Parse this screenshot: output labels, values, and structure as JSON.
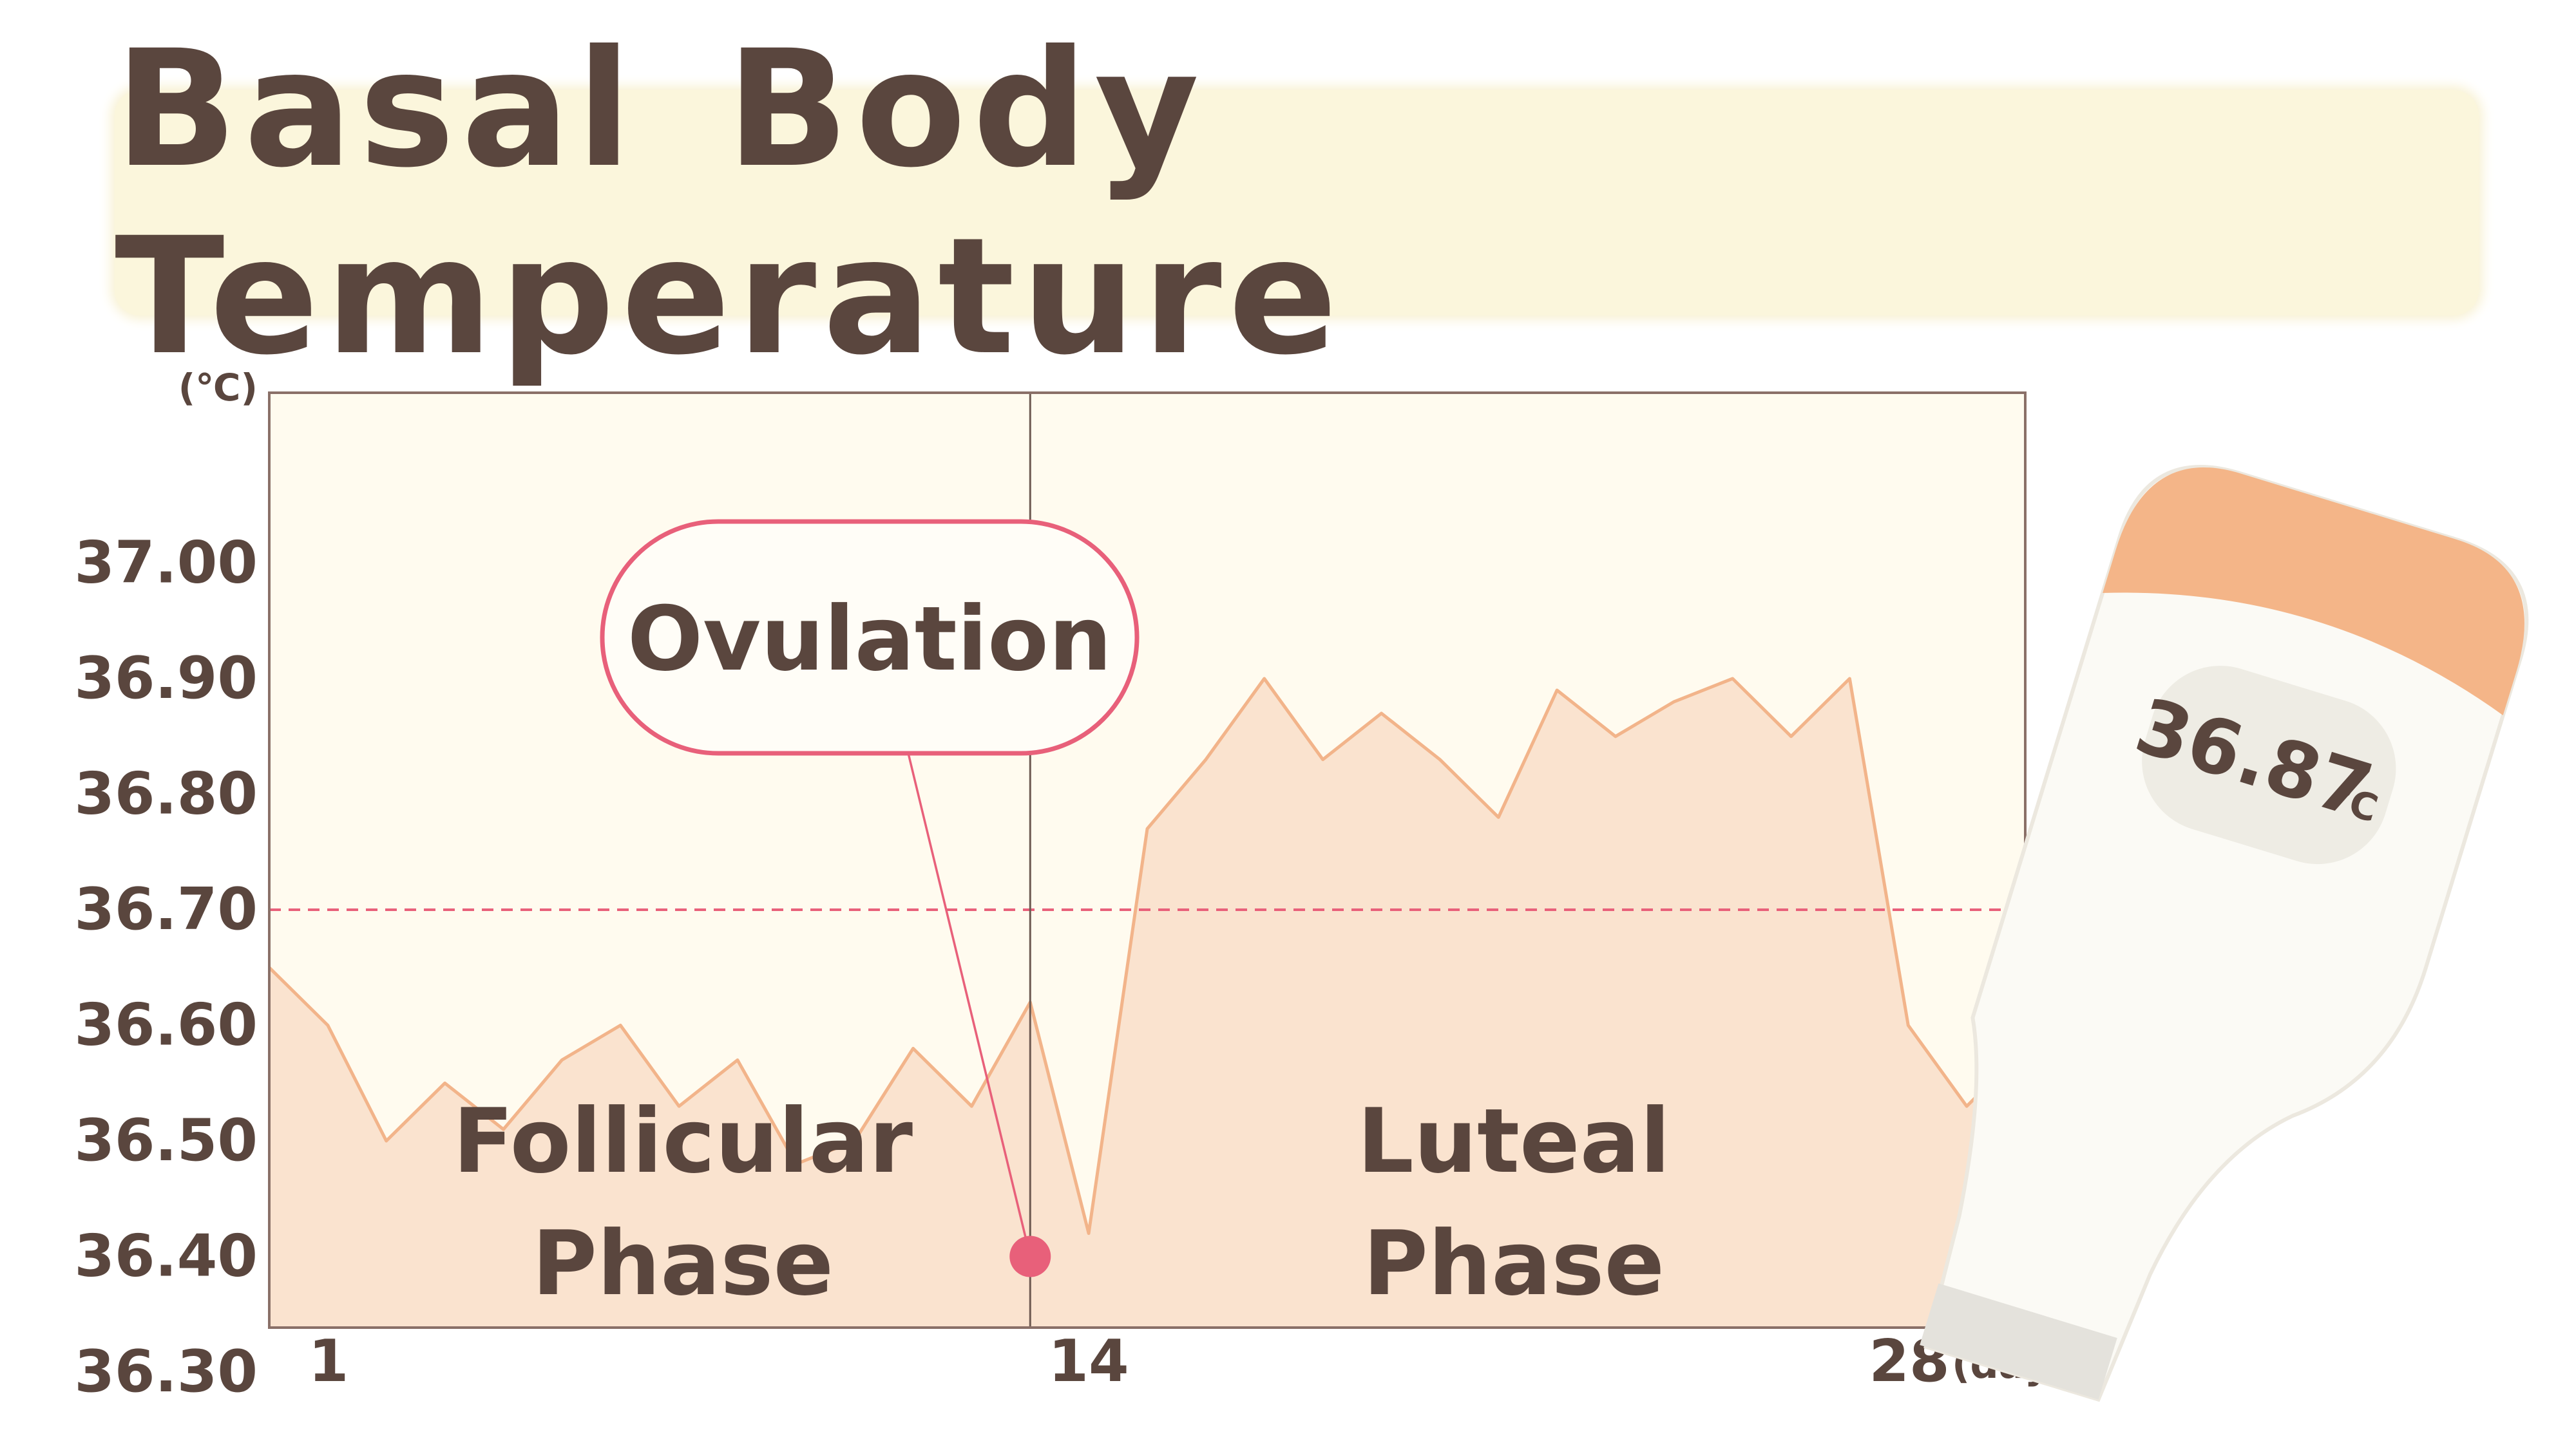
{
  "title": "Basal Body Temperature",
  "thermometer": {
    "reading": "36.87",
    "unit": "℃"
  },
  "colors": {
    "text": "#5a463e",
    "accent": "#e8607a",
    "fill": "#fae3cf",
    "line": "#f2b48a",
    "plot_bg": "#fffbef",
    "banner": "#fbf6dc"
  },
  "chart_data": {
    "type": "area",
    "title": "Basal Body Temperature",
    "y_unit": "(℃)",
    "x_unit": "(day)",
    "ylim": [
      36.25,
      37.05
    ],
    "xlim": [
      1,
      31
    ],
    "yticks": [
      "37.00",
      "36.90",
      "36.80",
      "36.70",
      "36.60",
      "36.50",
      "36.40",
      "36.30"
    ],
    "xticks": [
      "1",
      "14",
      "28"
    ],
    "x": [
      1,
      2,
      3,
      4,
      5,
      6,
      7,
      8,
      9,
      10,
      11,
      12,
      13,
      14,
      15,
      16,
      17,
      18,
      19,
      20,
      21,
      22,
      23,
      24,
      25,
      26,
      27,
      28,
      29,
      30,
      31
    ],
    "values": [
      36.65,
      36.6,
      36.5,
      36.55,
      36.51,
      36.57,
      36.6,
      36.53,
      36.57,
      36.48,
      36.5,
      36.58,
      36.53,
      36.62,
      36.42,
      36.77,
      36.83,
      36.9,
      36.83,
      36.87,
      36.83,
      36.78,
      36.89,
      36.85,
      36.88,
      36.9,
      36.85,
      36.9,
      36.6,
      36.53,
      36.58
    ],
    "reference_line": {
      "value": 36.7,
      "label": "36.70",
      "style": "dashed"
    },
    "divider_x": 14,
    "annotations": {
      "ovulation": {
        "label": "Ovulation",
        "x": 14,
        "y": 36.4
      },
      "follicular": {
        "line1": "Follicular",
        "line2": "Phase"
      },
      "luteal": {
        "line1": "Luteal",
        "line2": "Phase"
      }
    },
    "grid": false,
    "legend": "none"
  }
}
